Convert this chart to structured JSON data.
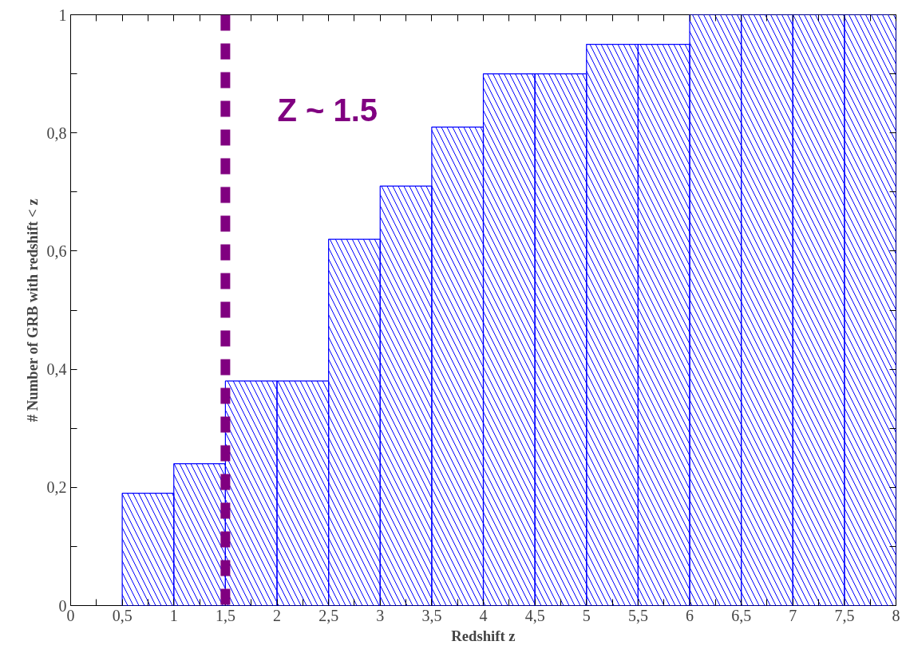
{
  "chart_data": {
    "type": "histogram",
    "xlabel": "Redshift z",
    "ylabel": "# Number of GRB with redshift < z",
    "bins": [
      0.5,
      1,
      1.5,
      2,
      2.5,
      3,
      3.5,
      4,
      4.5,
      5,
      5.5,
      6,
      6.5,
      7,
      7.5,
      8
    ],
    "values": [
      0.19,
      0.24,
      0.38,
      0.38,
      0.62,
      0.71,
      0.81,
      0.9,
      0.9,
      0.95,
      0.95,
      1,
      1,
      1,
      1
    ],
    "color": "#0000ff",
    "xlim": [
      0,
      8
    ],
    "ylim": [
      0,
      1
    ],
    "xticks": [
      0,
      {
        "value": 0.25,
        "label": null
      },
      {
        "value": 0.5,
        "label": "0,5"
      },
      {
        "value": 0.75,
        "label": null
      },
      1,
      {
        "value": 1.25,
        "label": null
      },
      {
        "value": 1.5,
        "label": "1,5"
      },
      {
        "value": 1.75,
        "label": null
      },
      2,
      {
        "value": 2.25,
        "label": null
      },
      {
        "value": 2.5,
        "label": "2,5"
      },
      {
        "value": 2.75,
        "label": null
      },
      3,
      {
        "value": 3.25,
        "label": null
      },
      {
        "value": 3.5,
        "label": "3,5"
      },
      {
        "value": 3.75,
        "label": null
      },
      4,
      {
        "value": 4.25,
        "label": null
      },
      {
        "value": 4.5,
        "label": "4,5"
      },
      {
        "value": 4.75,
        "label": null
      },
      5,
      {
        "value": 5.25,
        "label": null
      },
      {
        "value": 5.5,
        "label": "5,5"
      },
      {
        "value": 5.75,
        "label": null
      },
      6,
      {
        "value": 6.25,
        "label": null
      },
      {
        "value": 6.5,
        "label": "6,5"
      },
      {
        "value": 6.75,
        "label": null
      },
      7,
      {
        "value": 7.25,
        "label": null
      },
      {
        "value": 7.5,
        "label": "7,5"
      },
      {
        "value": 7.75,
        "label": null
      },
      8
    ],
    "yticks": [
      0,
      {
        "value": 0.1,
        "label": null
      },
      {
        "value": 0.2,
        "label": "0,2"
      },
      {
        "value": 0.3,
        "label": null
      },
      {
        "value": 0.4,
        "label": "0,4"
      },
      {
        "value": 0.5,
        "label": null
      },
      {
        "value": 0.6,
        "label": "0,6"
      },
      {
        "value": 0.7,
        "label": null
      },
      {
        "value": 0.8,
        "label": "0,8"
      },
      {
        "value": 0.9,
        "label": null
      },
      1
    ],
    "ref_lines": [
      {
        "axis": "x",
        "value": 1.5,
        "label": "Z ~ 1.5",
        "color": "#800080",
        "line_style": "dashed"
      }
    ],
    "grid": false
  }
}
